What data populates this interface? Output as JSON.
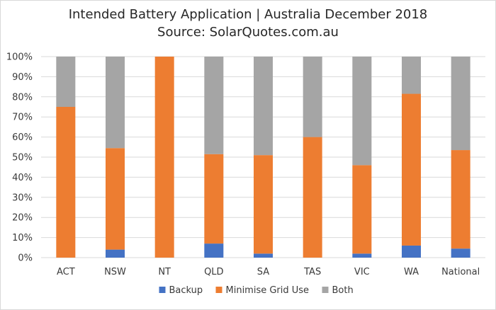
{
  "chart_data": {
    "type": "bar",
    "stacked": true,
    "title": "Intended Battery Application | Australia December 2018",
    "subtitle": "Source: SolarQuotes.com.au",
    "categories": [
      "ACT",
      "NSW",
      "NT",
      "QLD",
      "SA",
      "TAS",
      "VIC",
      "WA",
      "National"
    ],
    "series": [
      {
        "name": "Backup",
        "color": "#4472c4",
        "values": [
          0,
          4,
          0,
          7,
          2,
          0,
          2,
          6,
          4.5
        ]
      },
      {
        "name": "Minimise Grid Use",
        "color": "#ed7d31",
        "values": [
          75,
          50.5,
          100,
          44.5,
          49,
          60,
          44,
          75.5,
          49
        ]
      },
      {
        "name": "Both",
        "color": "#a5a5a5",
        "values": [
          25,
          45.5,
          0,
          48.5,
          49,
          40,
          54,
          18.5,
          46.5
        ]
      }
    ],
    "yticks": [
      "0%",
      "10%",
      "20%",
      "30%",
      "40%",
      "50%",
      "60%",
      "70%",
      "80%",
      "90%",
      "100%"
    ],
    "ylim": [
      0,
      100
    ],
    "grid": true,
    "legend_position": "bottom"
  }
}
